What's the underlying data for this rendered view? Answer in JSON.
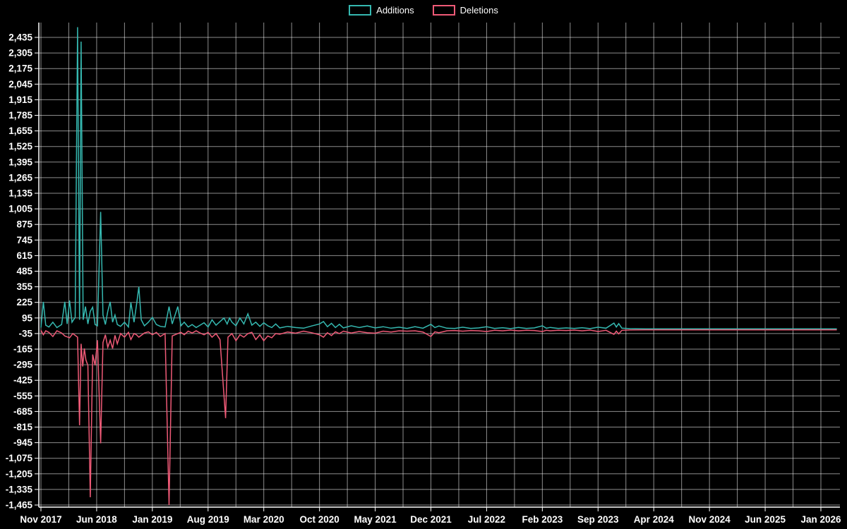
{
  "colors": {
    "background": "#000000",
    "grid": "#ffffff",
    "axis": "#ffffff",
    "text": "#ffffff",
    "additions": "#35b8b0",
    "deletions": "#ef5a77"
  },
  "chart_data": {
    "type": "line",
    "title": "",
    "xlabel": "",
    "ylabel": "",
    "grid": true,
    "legend_position": "top-center",
    "x_axis": {
      "unit": "months since Nov 2017",
      "tick_labels": [
        "Nov 2017",
        "Jun 2018",
        "Jan 2019",
        "Aug 2019",
        "Mar 2020",
        "Oct 2020",
        "May 2021",
        "Dec 2021",
        "Jul 2022",
        "Feb 2023",
        "Sep 2023",
        "Apr 2024",
        "Nov 2024",
        "Jun 2025",
        "Jan 2026"
      ],
      "tick_months": [
        0,
        7,
        14,
        21,
        28,
        35,
        42,
        49,
        56,
        63,
        70,
        77,
        84,
        91,
        98
      ],
      "max_month": 100
    },
    "y_axis": {
      "tick_max": 2435,
      "tick_min": -1465,
      "tick_step": 130
    },
    "series": [
      {
        "name": "Additions",
        "color": "#35b8b0",
        "points": [
          [
            0,
            15
          ],
          [
            0.3,
            230
          ],
          [
            0.6,
            35
          ],
          [
            1,
            20
          ],
          [
            1.5,
            60
          ],
          [
            2,
            15
          ],
          [
            2.6,
            40
          ],
          [
            3,
            230
          ],
          [
            3.3,
            45
          ],
          [
            3.6,
            240
          ],
          [
            3.9,
            60
          ],
          [
            4.3,
            100
          ],
          [
            4.6,
            2520
          ],
          [
            4.85,
            80
          ],
          [
            5.05,
            2400
          ],
          [
            5.3,
            80
          ],
          [
            5.6,
            190
          ],
          [
            5.9,
            45
          ],
          [
            6.2,
            150
          ],
          [
            6.5,
            185
          ],
          [
            6.8,
            40
          ],
          [
            7.1,
            30
          ],
          [
            7.5,
            980
          ],
          [
            7.8,
            120
          ],
          [
            8.1,
            40
          ],
          [
            8.4,
            150
          ],
          [
            8.7,
            230
          ],
          [
            9,
            60
          ],
          [
            9.3,
            120
          ],
          [
            9.6,
            40
          ],
          [
            10,
            25
          ],
          [
            10.5,
            60
          ],
          [
            11,
            20
          ],
          [
            11.3,
            225
          ],
          [
            11.7,
            60
          ],
          [
            12,
            200
          ],
          [
            12.3,
            355
          ],
          [
            12.6,
            80
          ],
          [
            13,
            30
          ],
          [
            13.5,
            60
          ],
          [
            14,
            100
          ],
          [
            14.5,
            40
          ],
          [
            15,
            25
          ],
          [
            15.6,
            20
          ],
          [
            16.1,
            190
          ],
          [
            16.5,
            45
          ],
          [
            17.2,
            190
          ],
          [
            17.6,
            30
          ],
          [
            18,
            60
          ],
          [
            18.5,
            20
          ],
          [
            19,
            40
          ],
          [
            19.5,
            15
          ],
          [
            20,
            35
          ],
          [
            20.5,
            55
          ],
          [
            21,
            20
          ],
          [
            21.5,
            80
          ],
          [
            22,
            35
          ],
          [
            22.5,
            65
          ],
          [
            23,
            95
          ],
          [
            23.4,
            45
          ],
          [
            23.7,
            95
          ],
          [
            24,
            60
          ],
          [
            24.5,
            30
          ],
          [
            25,
            95
          ],
          [
            25.5,
            45
          ],
          [
            26,
            130
          ],
          [
            26.5,
            35
          ],
          [
            27,
            60
          ],
          [
            27.5,
            25
          ],
          [
            28,
            55
          ],
          [
            28.5,
            30
          ],
          [
            29,
            15
          ],
          [
            29.5,
            45
          ],
          [
            30,
            12
          ],
          [
            31,
            25
          ],
          [
            32,
            15
          ],
          [
            33,
            10
          ],
          [
            34,
            28
          ],
          [
            35,
            45
          ],
          [
            35.5,
            65
          ],
          [
            36,
            22
          ],
          [
            36.5,
            50
          ],
          [
            37,
            15
          ],
          [
            37.5,
            42
          ],
          [
            38,
            12
          ],
          [
            39,
            30
          ],
          [
            40,
            15
          ],
          [
            41,
            28
          ],
          [
            42,
            12
          ],
          [
            43,
            22
          ],
          [
            44,
            10
          ],
          [
            45,
            18
          ],
          [
            46,
            8
          ],
          [
            47,
            22
          ],
          [
            48,
            10
          ],
          [
            49,
            42
          ],
          [
            49.5,
            15
          ],
          [
            50,
            28
          ],
          [
            51,
            10
          ],
          [
            52,
            8
          ],
          [
            53,
            18
          ],
          [
            54,
            8
          ],
          [
            55,
            12
          ],
          [
            56,
            22
          ],
          [
            57,
            8
          ],
          [
            58,
            14
          ],
          [
            59,
            6
          ],
          [
            60,
            16
          ],
          [
            61,
            8
          ],
          [
            62,
            12
          ],
          [
            63,
            30
          ],
          [
            63.5,
            10
          ],
          [
            64,
            16
          ],
          [
            65,
            8
          ],
          [
            66,
            12
          ],
          [
            67,
            8
          ],
          [
            68,
            14
          ],
          [
            69,
            6
          ],
          [
            70,
            18
          ],
          [
            71,
            10
          ],
          [
            72,
            52
          ],
          [
            72.3,
            20
          ],
          [
            72.6,
            48
          ],
          [
            73,
            10
          ],
          [
            74,
            6
          ],
          [
            76,
            4
          ],
          [
            80,
            4
          ],
          [
            85,
            4
          ],
          [
            90,
            4
          ],
          [
            95,
            4
          ],
          [
            100,
            4
          ]
        ]
      },
      {
        "name": "Deletions",
        "color": "#ef5a77",
        "points": [
          [
            0,
            -8
          ],
          [
            0.3,
            -45
          ],
          [
            0.6,
            -12
          ],
          [
            1,
            -25
          ],
          [
            1.5,
            -60
          ],
          [
            2,
            -12
          ],
          [
            2.6,
            -30
          ],
          [
            3,
            -55
          ],
          [
            3.6,
            -70
          ],
          [
            4,
            -35
          ],
          [
            4.6,
            -65
          ],
          [
            4.85,
            -800
          ],
          [
            5.05,
            -120
          ],
          [
            5.25,
            -310
          ],
          [
            5.45,
            -160
          ],
          [
            5.65,
            -255
          ],
          [
            5.9,
            -300
          ],
          [
            6.2,
            -1400
          ],
          [
            6.5,
            -210
          ],
          [
            6.8,
            -300
          ],
          [
            7.1,
            -90
          ],
          [
            7.5,
            -950
          ],
          [
            7.8,
            -110
          ],
          [
            8.1,
            -45
          ],
          [
            8.4,
            -150
          ],
          [
            8.7,
            -90
          ],
          [
            9,
            -160
          ],
          [
            9.3,
            -50
          ],
          [
            9.6,
            -120
          ],
          [
            10,
            -35
          ],
          [
            10.5,
            -65
          ],
          [
            11,
            -25
          ],
          [
            11.3,
            -85
          ],
          [
            11.7,
            -35
          ],
          [
            12,
            -45
          ],
          [
            12.3,
            -65
          ],
          [
            13,
            -30
          ],
          [
            13.5,
            -20
          ],
          [
            14,
            -45
          ],
          [
            14.5,
            -25
          ],
          [
            15,
            -60
          ],
          [
            15.6,
            -35
          ],
          [
            16.1,
            -1465
          ],
          [
            16.5,
            -55
          ],
          [
            17.2,
            -35
          ],
          [
            17.6,
            -25
          ],
          [
            18,
            -45
          ],
          [
            18.5,
            -15
          ],
          [
            19,
            -30
          ],
          [
            19.5,
            -12
          ],
          [
            20,
            -30
          ],
          [
            20.5,
            -45
          ],
          [
            21,
            -25
          ],
          [
            21.5,
            -65
          ],
          [
            22,
            -35
          ],
          [
            22.5,
            -85
          ],
          [
            23.2,
            -740
          ],
          [
            23.5,
            -65
          ],
          [
            24,
            -35
          ],
          [
            24.5,
            -95
          ],
          [
            25,
            -45
          ],
          [
            25.5,
            -65
          ],
          [
            26,
            -35
          ],
          [
            26.5,
            -25
          ],
          [
            27,
            -85
          ],
          [
            27.5,
            -45
          ],
          [
            28,
            -95
          ],
          [
            28.5,
            -55
          ],
          [
            29,
            -70
          ],
          [
            29.5,
            -35
          ],
          [
            30,
            -40
          ],
          [
            31,
            -22
          ],
          [
            32,
            -32
          ],
          [
            33,
            -15
          ],
          [
            34,
            -28
          ],
          [
            35,
            -45
          ],
          [
            35.5,
            -65
          ],
          [
            36,
            -28
          ],
          [
            36.5,
            -52
          ],
          [
            37,
            -20
          ],
          [
            37.5,
            -35
          ],
          [
            38,
            -15
          ],
          [
            39,
            -30
          ],
          [
            40,
            -18
          ],
          [
            41,
            -28
          ],
          [
            42,
            -32
          ],
          [
            43,
            -15
          ],
          [
            44,
            -22
          ],
          [
            45,
            -12
          ],
          [
            46,
            -15
          ],
          [
            47,
            -12
          ],
          [
            48,
            -22
          ],
          [
            49,
            -60
          ],
          [
            49.5,
            -20
          ],
          [
            50,
            -28
          ],
          [
            51,
            -12
          ],
          [
            52,
            -10
          ],
          [
            53,
            -15
          ],
          [
            54,
            -10
          ],
          [
            55,
            -12
          ],
          [
            56,
            -18
          ],
          [
            57,
            -8
          ],
          [
            58,
            -12
          ],
          [
            59,
            -6
          ],
          [
            60,
            -12
          ],
          [
            61,
            -8
          ],
          [
            62,
            -10
          ],
          [
            63,
            -18
          ],
          [
            63.5,
            -8
          ],
          [
            64,
            -12
          ],
          [
            65,
            -8
          ],
          [
            66,
            -10
          ],
          [
            67,
            -6
          ],
          [
            68,
            -12
          ],
          [
            69,
            -6
          ],
          [
            70,
            -18
          ],
          [
            71,
            -8
          ],
          [
            72,
            -42
          ],
          [
            72.3,
            -15
          ],
          [
            72.6,
            -38
          ],
          [
            73,
            -8
          ],
          [
            74,
            -5
          ],
          [
            76,
            -4
          ],
          [
            80,
            -4
          ],
          [
            85,
            -4
          ],
          [
            90,
            -4
          ],
          [
            95,
            -4
          ],
          [
            100,
            -4
          ]
        ]
      }
    ]
  }
}
